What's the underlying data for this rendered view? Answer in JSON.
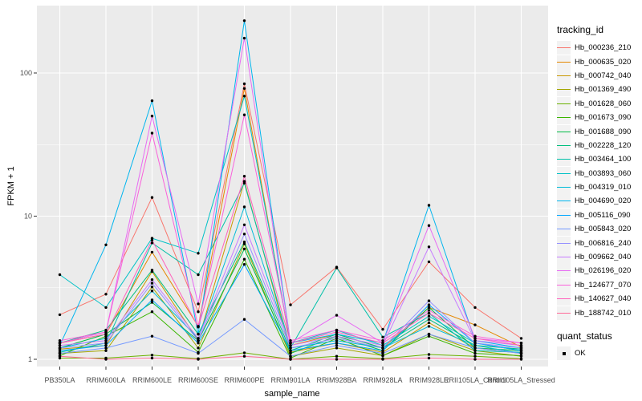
{
  "chart_data": {
    "type": "line",
    "xlabel": "sample_name",
    "ylabel": "FPKM + 1",
    "legend_title": "tracking_id",
    "y_scale": "log10",
    "y_ticks": [
      "1",
      "10",
      "100"
    ],
    "ylim": [
      0.95,
      270
    ],
    "grid": "on",
    "legend_position": "right",
    "categories": [
      "PB350LA",
      "RRIM600LA",
      "RRIM600LE",
      "RRIM600SE",
      "RRIM600PE",
      "RRIM901LA",
      "RRIM928BA",
      "RRIM928LA",
      "RRIM928LE",
      "RRII105LA_Control",
      "RRII105LA_Stressed"
    ],
    "series": [
      {
        "name": "Hb_000236_210",
        "color": "#F8766D",
        "values": [
          2.05,
          2.85,
          13.5,
          2.15,
          84,
          2.4,
          4.4,
          1.62,
          4.8,
          2.3,
          1.4
        ]
      },
      {
        "name": "Hb_000635_020",
        "color": "#E58700",
        "values": [
          1.3,
          1.5,
          5.6,
          1.7,
          78,
          1.25,
          1.5,
          1.2,
          2.3,
          1.74,
          1.22
        ]
      },
      {
        "name": "Hb_000742_040",
        "color": "#C99800",
        "values": [
          1.18,
          1.25,
          4.1,
          1.35,
          17.5,
          1.12,
          1.3,
          1.12,
          1.8,
          1.2,
          1.1
        ]
      },
      {
        "name": "Hb_001369_490",
        "color": "#A3A500",
        "values": [
          1.1,
          1.15,
          3.2,
          1.2,
          6.4,
          1.05,
          1.2,
          1.06,
          1.5,
          1.15,
          1.05
        ]
      },
      {
        "name": "Hb_001628_060",
        "color": "#6BB100",
        "values": [
          1.02,
          1.02,
          1.07,
          1.01,
          1.11,
          1.0,
          1.05,
          1.01,
          1.08,
          1.05,
          1.01
        ]
      },
      {
        "name": "Hb_001673_090",
        "color": "#39B600",
        "values": [
          1.06,
          1.45,
          2.15,
          1.12,
          5.0,
          1.02,
          1.4,
          1.06,
          1.45,
          1.1,
          1.06
        ]
      },
      {
        "name": "Hb_001688_090",
        "color": "#00BB45",
        "values": [
          1.2,
          1.5,
          2.5,
          1.35,
          5.9,
          1.1,
          1.45,
          1.15,
          2.3,
          1.2,
          1.15
        ]
      },
      {
        "name": "Hb_002228_120",
        "color": "#00BF7D",
        "values": [
          1.3,
          1.6,
          4.2,
          1.5,
          6.6,
          1.15,
          1.5,
          1.2,
          1.9,
          1.25,
          1.18
        ]
      },
      {
        "name": "Hb_003464_100",
        "color": "#00C0A8",
        "values": [
          1.12,
          1.3,
          6.5,
          3.9,
          17,
          1.2,
          4.35,
          1.43,
          2.1,
          1.15,
          1.12
        ]
      },
      {
        "name": "Hb_003893_060",
        "color": "#00C1C6",
        "values": [
          3.9,
          2.3,
          7.0,
          5.5,
          69,
          1.3,
          1.6,
          1.25,
          2.0,
          1.3,
          1.15
        ]
      },
      {
        "name": "Hb_004319_010",
        "color": "#00BCD8",
        "values": [
          1.2,
          1.4,
          3.0,
          1.4,
          11.6,
          1.2,
          1.35,
          1.2,
          1.7,
          1.25,
          1.1
        ]
      },
      {
        "name": "Hb_004690_020",
        "color": "#00B5EE",
        "values": [
          1.25,
          6.3,
          64,
          1.5,
          232,
          1.3,
          1.5,
          1.3,
          11.9,
          1.35,
          1.2
        ]
      },
      {
        "name": "Hb_005116_090",
        "color": "#00A7FF",
        "values": [
          1.15,
          1.25,
          2.6,
          1.3,
          4.6,
          1.15,
          1.3,
          1.15,
          2.4,
          1.3,
          1.15
        ]
      },
      {
        "name": "Hb_005843_020",
        "color": "#7499FF",
        "values": [
          1.1,
          1.2,
          1.45,
          1.1,
          1.9,
          1.05,
          1.25,
          1.1,
          1.5,
          1.2,
          1.1
        ]
      },
      {
        "name": "Hb_006816_240",
        "color": "#9590FF",
        "values": [
          1.2,
          1.3,
          3.4,
          1.35,
          7.5,
          1.2,
          1.4,
          1.2,
          2.56,
          1.3,
          1.2
        ]
      },
      {
        "name": "Hb_009662_040",
        "color": "#C77CFF",
        "values": [
          1.25,
          1.35,
          3.6,
          1.4,
          8.7,
          1.25,
          1.45,
          1.25,
          6.1,
          1.35,
          1.25
        ]
      },
      {
        "name": "Hb_026196_020",
        "color": "#E76BF3",
        "values": [
          1.3,
          1.55,
          50,
          2.44,
          175,
          1.3,
          2.03,
          1.3,
          8.6,
          1.4,
          1.3
        ]
      },
      {
        "name": "Hb_124677_070",
        "color": "#FA62DB",
        "values": [
          1.35,
          1.55,
          38,
          1.7,
          51,
          1.35,
          1.6,
          1.35,
          2.2,
          1.45,
          1.3
        ]
      },
      {
        "name": "Hb_140627_040",
        "color": "#FF62BC",
        "values": [
          1.3,
          1.5,
          6.8,
          1.68,
          19,
          1.3,
          1.55,
          1.3,
          2.1,
          1.4,
          1.25
        ]
      },
      {
        "name": "Hb_188742_010",
        "color": "#FF6A98",
        "values": [
          1.05,
          1.0,
          1.02,
          1.0,
          1.05,
          1.0,
          1.0,
          1.0,
          1.02,
          1.0,
          1.0
        ]
      }
    ],
    "quant_legend": {
      "title": "quant_status",
      "items": [
        "OK"
      ]
    },
    "colors": {
      "panel_bg": "#EBEBEB",
      "grid": "#FFFFFF",
      "point": "#000000",
      "tick_label": "#4D4D4D",
      "tick_mark": "#333333",
      "legend_key_bg": "#F2F2F2"
    }
  }
}
